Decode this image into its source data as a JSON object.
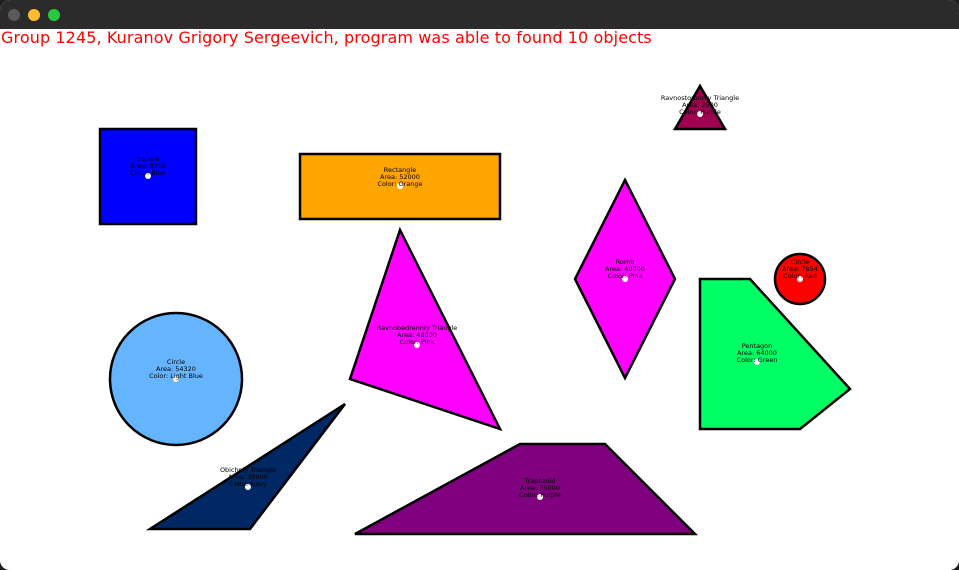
{
  "header": {
    "text": "Group 1245, Kuranov Grigory Sergeevich, program was able to found 10 objects",
    "color": "#ff0000"
  },
  "window": {
    "controls": [
      "close-button",
      "minimize-button",
      "maximize-button"
    ]
  },
  "shapes": [
    {
      "id": "square",
      "name": "Square",
      "area": "Area: 9216",
      "color_label": "Color: Blue",
      "fill": "#0000ff"
    },
    {
      "id": "rectangle",
      "name": "Rectangle",
      "area": "Area: 52000",
      "color_label": "Color: Orange",
      "fill": "#ffa500"
    },
    {
      "id": "ravnostoronniy-triangle",
      "name": "Ravnostoronniy Triangle",
      "area": "Area: 2500",
      "color_label": "Color: Purple",
      "fill": "#a00050"
    },
    {
      "id": "romb",
      "name": "Romb",
      "area": "Area: 40000",
      "color_label": "Color: Pink",
      "fill": "#ff00ff"
    },
    {
      "id": "circle-red",
      "name": "Circle",
      "area": "Area: 7854",
      "color_label": "Color: Red",
      "fill": "#ff0000"
    },
    {
      "id": "ravnobedrenniy-triangle",
      "name": "Ravnobedrenniy Triangle",
      "area": "Area: 48000",
      "color_label": "Color: Pink",
      "fill": "#ff00ff"
    },
    {
      "id": "pentagon",
      "name": "Pentagon",
      "area": "Area: 64000",
      "color_label": "Color: Green",
      "fill": "#00ff64"
    },
    {
      "id": "circle-light-blue",
      "name": "Circle",
      "area": "Area: 54320",
      "color_label": "Color: Light Blue",
      "fill": "#64b4ff"
    },
    {
      "id": "obichniy-triangle",
      "name": "Obichniy Triangle",
      "area": "Area: 30000",
      "color_label": "Color: Navy",
      "fill": "#002864"
    },
    {
      "id": "trapezoid",
      "name": "Trapezoid",
      "area": "Area: 75000",
      "color_label": "Color: Purple",
      "fill": "#800080"
    }
  ]
}
